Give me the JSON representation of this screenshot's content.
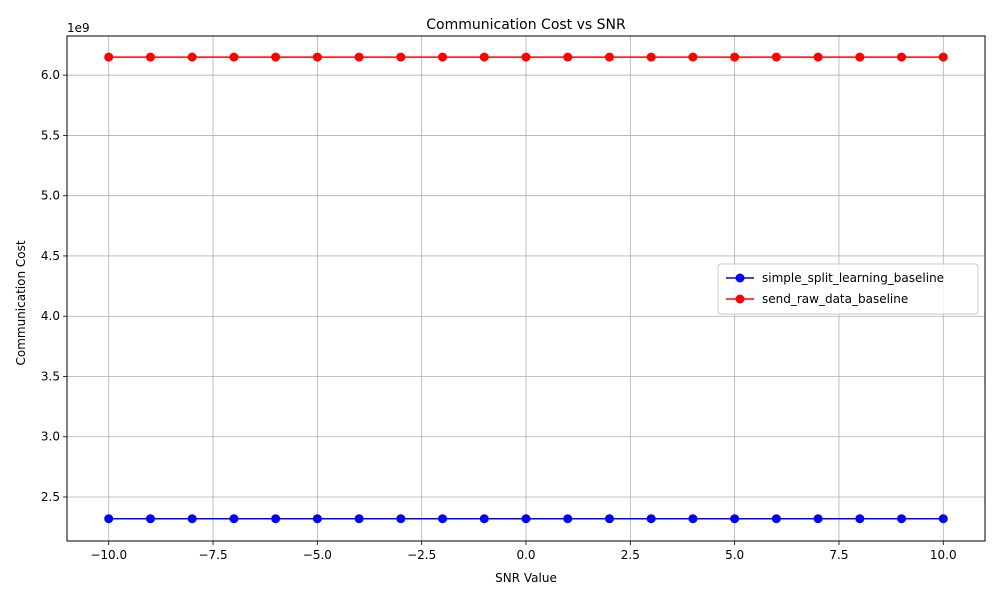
{
  "chart_data": {
    "type": "line",
    "title": "Communication Cost vs SNR",
    "xlabel": "SNR Value",
    "ylabel": "Communication Cost",
    "y_offset_label": "1e9",
    "y_scale": 1000000000,
    "x": [
      -10,
      -9,
      -8,
      -7,
      -6,
      -5,
      -4,
      -3,
      -2,
      -1,
      0,
      1,
      2,
      3,
      4,
      5,
      6,
      7,
      8,
      9,
      10
    ],
    "xlim": [
      -11,
      11
    ],
    "ylim": [
      2.135,
      6.325
    ],
    "x_ticks": [
      -10,
      -7.5,
      -5,
      -2.5,
      0,
      2.5,
      5,
      7.5,
      10
    ],
    "x_tick_labels": [
      "−10.0",
      "−7.5",
      "−5.0",
      "−2.5",
      "0.0",
      "2.5",
      "5.0",
      "7.5",
      "10.0"
    ],
    "y_ticks": [
      2.5,
      3.0,
      3.5,
      4.0,
      4.5,
      5.0,
      5.5,
      6.0
    ],
    "y_tick_labels": [
      "2.5",
      "3.0",
      "3.5",
      "4.0",
      "4.5",
      "5.0",
      "5.5",
      "6.0"
    ],
    "grid": true,
    "legend_position": "center-right",
    "series": [
      {
        "name": "simple_split_learning_baseline",
        "color": "#0000ff",
        "marker": "circle",
        "values": [
          2.32,
          2.32,
          2.32,
          2.32,
          2.32,
          2.32,
          2.32,
          2.32,
          2.32,
          2.32,
          2.32,
          2.32,
          2.32,
          2.32,
          2.32,
          2.32,
          2.32,
          2.32,
          2.32,
          2.32,
          2.32
        ]
      },
      {
        "name": "send_raw_data_baseline",
        "color": "#ff0000",
        "marker": "circle",
        "values": [
          6.15,
          6.15,
          6.15,
          6.15,
          6.15,
          6.15,
          6.15,
          6.15,
          6.15,
          6.15,
          6.15,
          6.15,
          6.15,
          6.15,
          6.15,
          6.15,
          6.15,
          6.15,
          6.15,
          6.15,
          6.15
        ]
      }
    ]
  }
}
